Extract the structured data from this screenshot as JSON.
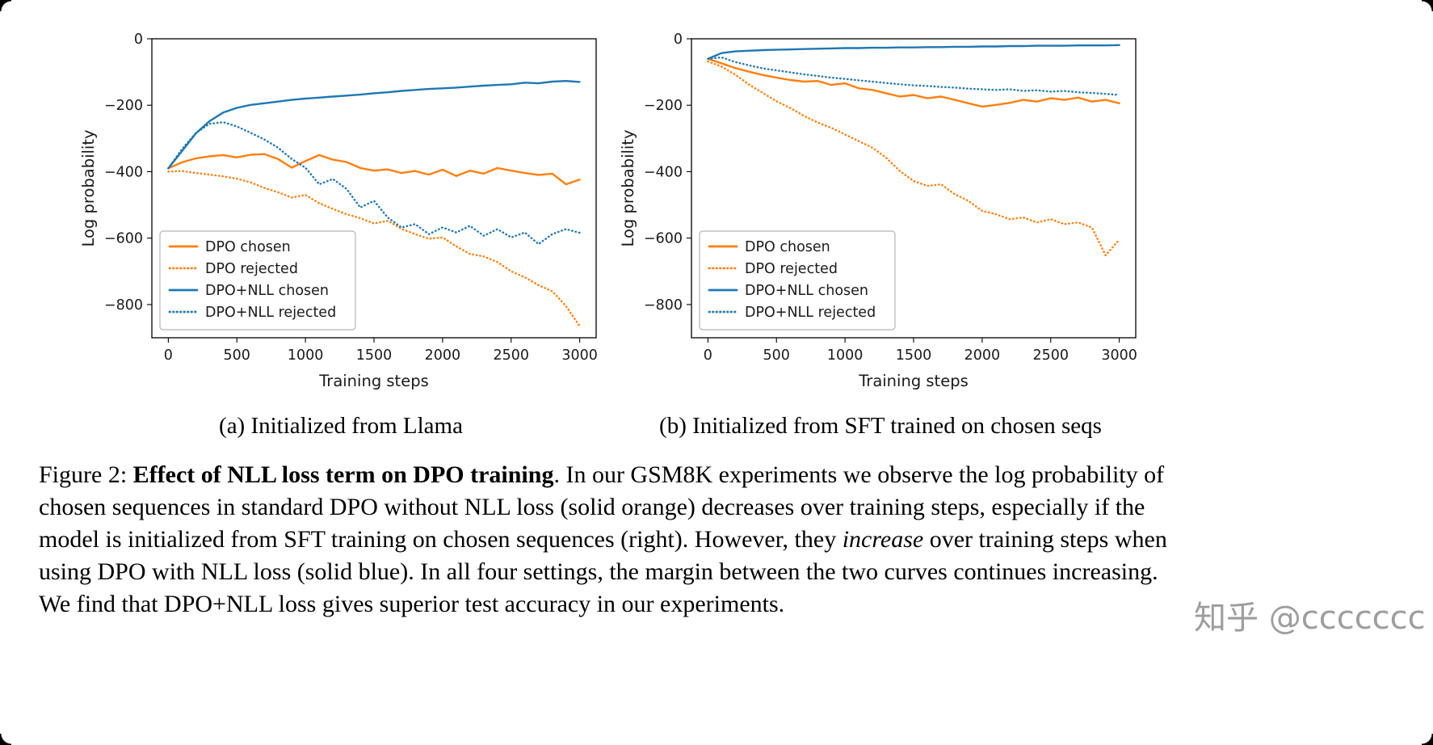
{
  "page": {
    "background": "#ffffff"
  },
  "figure": {
    "subcaptions": [
      "(a) Initialized from Llama",
      "(b) Initialized from SFT trained on chosen seqs"
    ]
  },
  "caption": {
    "segments": [
      {
        "text": "Figure 2: ",
        "style": "normal"
      },
      {
        "text": "Effect of NLL loss term on DPO training",
        "style": "bold"
      },
      {
        "text": ". In our GSM8K experiments we observe the log probability of chosen sequences in standard DPO without NLL loss (solid orange) decreases over training steps, especially if the model is initialized from SFT training on chosen sequences (right). However, they ",
        "style": "normal"
      },
      {
        "text": "increase",
        "style": "italic"
      },
      {
        "text": " over training steps when using DPO with NLL loss (solid blue). In all four settings, the margin between the two curves continues increasing. We find that DPO+NLL loss gives superior test accuracy in our experiments.",
        "style": "normal"
      }
    ]
  },
  "watermark": {
    "text": "知乎 @ccccccc",
    "color": "#8c8c8c"
  },
  "colors": {
    "dpo_orange": "#ff7f0e",
    "dpo_nll_blue": "#1f77b4"
  },
  "chart_data": [
    {
      "type": "line",
      "title": "",
      "xlabel": "Training steps",
      "ylabel": "Log probability",
      "xlim": [
        -120,
        3120
      ],
      "ylim": [
        -900,
        0
      ],
      "xticks": [
        0,
        500,
        1000,
        1500,
        2000,
        2500,
        3000
      ],
      "yticks": [
        0,
        -200,
        -400,
        -600,
        -800
      ],
      "grid": false,
      "legend_position": "lower left",
      "x": [
        0,
        100,
        200,
        300,
        400,
        500,
        600,
        700,
        800,
        900,
        1000,
        1100,
        1200,
        1300,
        1400,
        1500,
        1600,
        1700,
        1800,
        1900,
        2000,
        2100,
        2200,
        2300,
        2400,
        2500,
        2600,
        2700,
        2800,
        2900,
        3000
      ],
      "series": [
        {
          "name": "DPO chosen",
          "color": "#ff7f0e",
          "style": "solid",
          "values": [
            -390,
            -372,
            -360,
            -354,
            -350,
            -357,
            -349,
            -347,
            -362,
            -388,
            -368,
            -350,
            -364,
            -371,
            -389,
            -397,
            -393,
            -404,
            -398,
            -409,
            -394,
            -413,
            -397,
            -406,
            -389,
            -397,
            -404,
            -410,
            -406,
            -438,
            -424
          ]
        },
        {
          "name": "DPO rejected",
          "color": "#ff7f0e",
          "style": "dotted",
          "values": [
            -400,
            -398,
            -404,
            -409,
            -414,
            -421,
            -432,
            -449,
            -462,
            -478,
            -470,
            -495,
            -512,
            -528,
            -540,
            -556,
            -548,
            -572,
            -588,
            -602,
            -598,
            -625,
            -648,
            -655,
            -672,
            -700,
            -718,
            -742,
            -760,
            -805,
            -865
          ]
        },
        {
          "name": "DPO+NLL chosen",
          "color": "#1f77b4",
          "style": "solid",
          "values": [
            -390,
            -338,
            -285,
            -248,
            -222,
            -208,
            -199,
            -194,
            -189,
            -184,
            -180,
            -177,
            -174,
            -171,
            -168,
            -164,
            -161,
            -157,
            -154,
            -151,
            -149,
            -147,
            -144,
            -141,
            -139,
            -137,
            -132,
            -134,
            -129,
            -127,
            -130
          ]
        },
        {
          "name": "DPO+NLL rejected",
          "color": "#1f77b4",
          "style": "dotted",
          "values": [
            -390,
            -332,
            -284,
            -256,
            -251,
            -264,
            -283,
            -303,
            -328,
            -362,
            -388,
            -438,
            -422,
            -452,
            -508,
            -488,
            -538,
            -568,
            -558,
            -588,
            -568,
            -583,
            -563,
            -593,
            -573,
            -598,
            -583,
            -618,
            -588,
            -573,
            -584
          ]
        }
      ]
    },
    {
      "type": "line",
      "title": "",
      "xlabel": "Training steps",
      "ylabel": "Log probability",
      "xlim": [
        -120,
        3120
      ],
      "ylim": [
        -900,
        0
      ],
      "xticks": [
        0,
        500,
        1000,
        1500,
        2000,
        2500,
        3000
      ],
      "yticks": [
        0,
        -200,
        -400,
        -600,
        -800
      ],
      "grid": false,
      "legend_position": "lower left",
      "x": [
        0,
        100,
        200,
        300,
        400,
        500,
        600,
        700,
        800,
        900,
        1000,
        1100,
        1200,
        1300,
        1400,
        1500,
        1600,
        1700,
        1800,
        1900,
        2000,
        2100,
        2200,
        2300,
        2400,
        2500,
        2600,
        2700,
        2800,
        2900,
        3000
      ],
      "series": [
        {
          "name": "DPO chosen",
          "color": "#ff7f0e",
          "style": "solid",
          "values": [
            -60,
            -74,
            -88,
            -99,
            -109,
            -117,
            -124,
            -129,
            -127,
            -139,
            -134,
            -149,
            -154,
            -164,
            -174,
            -169,
            -179,
            -174,
            -184,
            -194,
            -204,
            -199,
            -193,
            -184,
            -189,
            -179,
            -184,
            -177,
            -189,
            -184,
            -194
          ]
        },
        {
          "name": "DPO rejected",
          "color": "#ff7f0e",
          "style": "dotted",
          "values": [
            -68,
            -84,
            -108,
            -138,
            -163,
            -188,
            -208,
            -232,
            -252,
            -268,
            -288,
            -308,
            -328,
            -358,
            -398,
            -428,
            -443,
            -438,
            -468,
            -488,
            -518,
            -528,
            -543,
            -538,
            -553,
            -543,
            -558,
            -553,
            -568,
            -652,
            -605
          ]
        },
        {
          "name": "DPO+NLL chosen",
          "color": "#1f77b4",
          "style": "solid",
          "values": [
            -60,
            -43,
            -38,
            -36,
            -34,
            -33,
            -32,
            -31,
            -30,
            -29,
            -28,
            -28,
            -27,
            -27,
            -26,
            -26,
            -25,
            -25,
            -24,
            -24,
            -23,
            -23,
            -22,
            -22,
            -21,
            -21,
            -21,
            -20,
            -20,
            -20,
            -19
          ]
        },
        {
          "name": "DPO+NLL rejected",
          "color": "#1f77b4",
          "style": "dotted",
          "values": [
            -60,
            -56,
            -70,
            -80,
            -89,
            -95,
            -101,
            -107,
            -112,
            -117,
            -121,
            -125,
            -129,
            -133,
            -137,
            -140,
            -142,
            -145,
            -147,
            -150,
            -152,
            -154,
            -152,
            -157,
            -155,
            -159,
            -157,
            -161,
            -163,
            -166,
            -169
          ]
        }
      ]
    }
  ]
}
